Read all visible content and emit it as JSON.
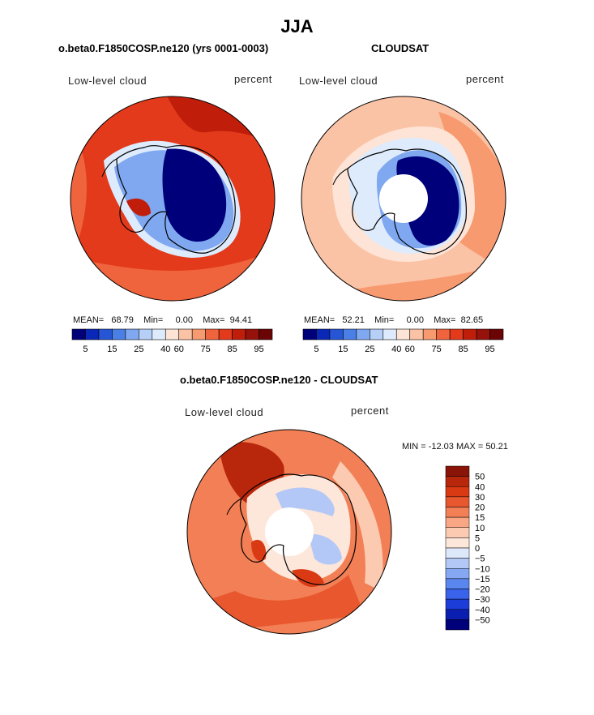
{
  "page_title": "JJA",
  "panels": [
    {
      "title": "o.beta0.F1850COSP.ne120 (yrs 0001-0003)",
      "variable": "Low-level cloud",
      "units": "percent",
      "stats": {
        "mean_label": "MEAN=",
        "mean": "68.79",
        "min_label": "Min=",
        "min": "0.00",
        "max_label": "Max=",
        "max": "94.41"
      }
    },
    {
      "title": "CLOUDSAT",
      "variable": "Low-level cloud",
      "units": "percent",
      "stats": {
        "mean_label": "MEAN=",
        "mean": "52.21",
        "min_label": "Min=",
        "min": "0.00",
        "max_label": "Max=",
        "max": "82.65"
      }
    },
    {
      "title": "o.beta0.F1850COSP.ne120 - CLOUDSAT",
      "variable": "Low-level cloud",
      "units": "percent",
      "minmax_text": "MIN = -12.03 MAX =  50.21"
    }
  ],
  "colors": {
    "abs_scale": [
      "#00007a",
      "#0a28b8",
      "#2656d6",
      "#4a7fe6",
      "#7fa8f0",
      "#b6cff7",
      "#deebfc",
      "#fde4d6",
      "#fbc3a5",
      "#f89a70",
      "#f0643d",
      "#e23a1a",
      "#c01e0a",
      "#96120a",
      "#6b0505"
    ],
    "diff_scale": [
      "#00007a",
      "#0a1fb0",
      "#1c3dd8",
      "#3963ea",
      "#5a86f0",
      "#86a8f3",
      "#b3c8f6",
      "#dde8fb",
      "#fde6da",
      "#fbcab0",
      "#f8a683",
      "#f27f55",
      "#e9572e",
      "#d93a14",
      "#b8260b",
      "#8a1407"
    ],
    "antarctica_interior": "#00007a",
    "missing": "#ffffff"
  },
  "chart_data": [
    {
      "type": "heatmap",
      "title": "o.beta0.F1850COSP.ne120 (yrs 0001-0003)",
      "field": "Low-level cloud",
      "units": "percent",
      "colorbar_ticks": [
        "5",
        "15",
        "25",
        "40",
        "60",
        "75",
        "85",
        "95"
      ],
      "mean": 68.79,
      "min": 0.0,
      "max": 94.41
    },
    {
      "type": "heatmap",
      "title": "CLOUDSAT",
      "field": "Low-level cloud",
      "units": "percent",
      "colorbar_ticks": [
        "5",
        "15",
        "25",
        "40",
        "60",
        "75",
        "85",
        "95"
      ],
      "mean": 52.21,
      "min": 0.0,
      "max": 82.65
    },
    {
      "type": "heatmap",
      "title": "o.beta0.F1850COSP.ne120 - CLOUDSAT",
      "field": "Low-level cloud",
      "units": "percent",
      "colorbar_ticks": [
        "50",
        "40",
        "30",
        "20",
        "15",
        "10",
        "5",
        "0",
        "−5",
        "−10",
        "−15",
        "−20",
        "−30",
        "−40",
        "−50"
      ],
      "min": -12.03,
      "max": 50.21
    }
  ]
}
